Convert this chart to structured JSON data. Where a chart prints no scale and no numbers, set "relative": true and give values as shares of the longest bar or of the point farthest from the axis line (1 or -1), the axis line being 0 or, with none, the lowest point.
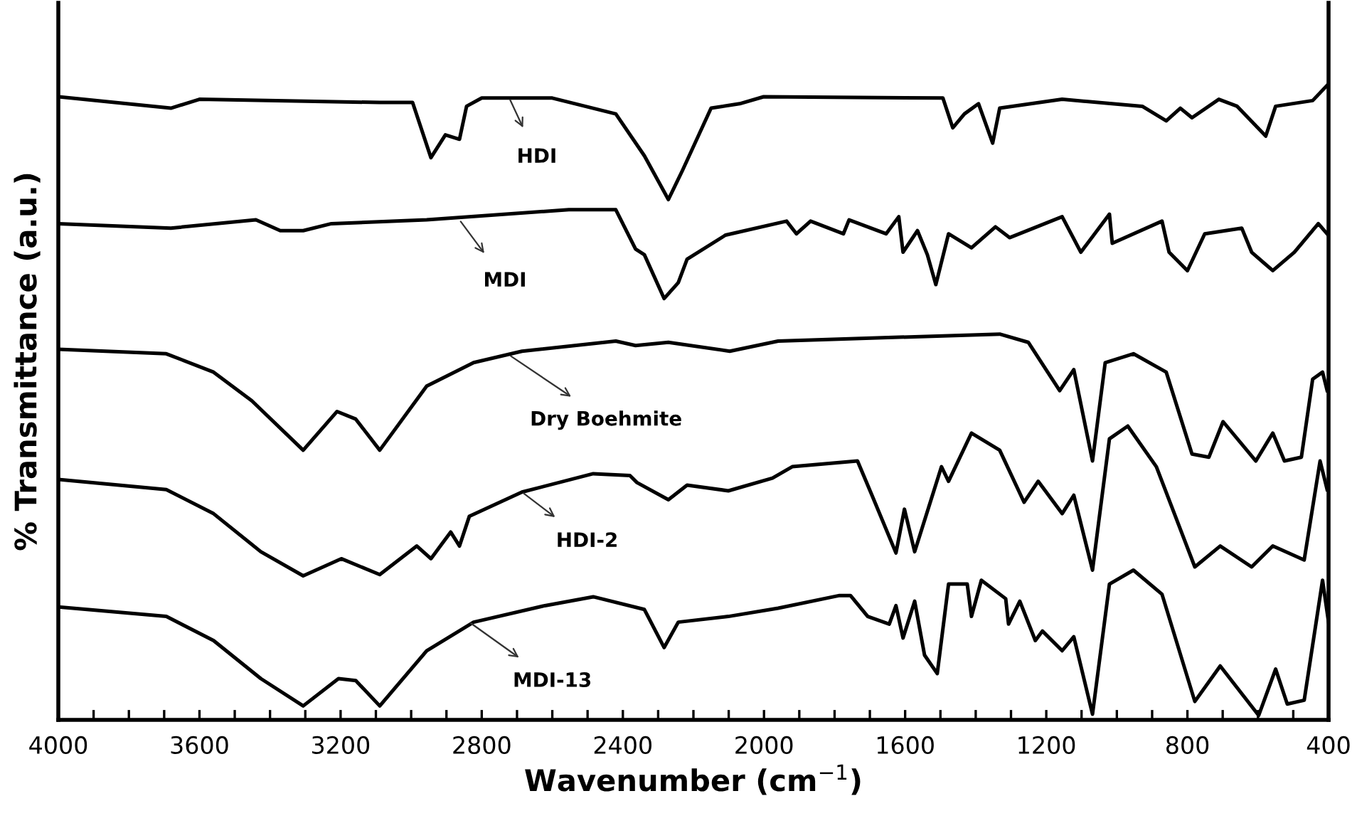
{
  "chart_data": {
    "type": "line",
    "relative": true,
    "xlabel": "Wavenumber (cm$^{−1}$)",
    "ylabel": "% Transmittance (a.u.)",
    "xlim": [
      4000,
      400
    ],
    "xticks": [
      4000,
      {
        "value": 3900,
        "label": null
      },
      {
        "value": 3800,
        "label": null
      },
      {
        "value": 3700,
        "label": null
      },
      3600,
      {
        "value": 3500,
        "label": null
      },
      {
        "value": 3400,
        "label": null
      },
      {
        "value": 3300,
        "label": null
      },
      3200,
      {
        "value": 3100,
        "label": null
      },
      {
        "value": 3000,
        "label": null
      },
      {
        "value": 2900,
        "label": null
      },
      2800,
      {
        "value": 2700,
        "label": null
      },
      {
        "value": 2600,
        "label": null
      },
      {
        "value": 2500,
        "label": null
      },
      2400,
      {
        "value": 2300,
        "label": null
      },
      {
        "value": 2200,
        "label": null
      },
      {
        "value": 2100,
        "label": null
      },
      2000,
      {
        "value": 1900,
        "label": null
      },
      {
        "value": 1800,
        "label": null
      },
      {
        "value": 1700,
        "label": null
      },
      1600,
      {
        "value": 1500,
        "label": null
      },
      {
        "value": 1400,
        "label": null
      },
      {
        "value": 1300,
        "label": null
      },
      1200,
      {
        "value": 1100,
        "label": null
      },
      {
        "value": 1000,
        "label": null
      },
      {
        "value": 900,
        "label": null
      },
      800,
      {
        "value": 700,
        "label": null
      },
      {
        "value": 600,
        "label": null
      },
      {
        "value": 500,
        "label": null
      },
      400
    ],
    "grid": false,
    "legend": false,
    "marker": "none",
    "line_style": "solid",
    "series": [
      {
        "color": "#000000",
        "x": [
          4000,
          3681,
          3600,
          3089,
          2996,
          2944,
          2903,
          2863,
          2843,
          2800,
          2600,
          2420,
          2339,
          2271,
          2231,
          2150,
          2069,
          2001,
          1493,
          1465,
          1432,
          1392,
          1352,
          1332,
          1155,
          928,
          860,
          820,
          787,
          711,
          659,
          578,
          550,
          445,
          404
        ],
        "values": [
          0.982,
          0.964,
          0.978,
          0.973,
          0.973,
          0.886,
          0.922,
          0.915,
          0.967,
          0.98,
          0.98,
          0.955,
          0.889,
          0.82,
          0.866,
          0.964,
          0.971,
          0.982,
          0.98,
          0.933,
          0.955,
          0.971,
          0.909,
          0.964,
          0.978,
          0.967,
          0.944,
          0.964,
          0.949,
          0.978,
          0.967,
          0.92,
          0.967,
          0.976,
          1.0
        ]
      },
      {
        "color": "#000000",
        "x": [
          4000,
          3681,
          3440,
          3371,
          3306,
          3226,
          2956,
          2553,
          2420,
          2364,
          2339,
          2283,
          2243,
          2218,
          2109,
          1936,
          1908,
          1868,
          1775,
          1759,
          1654,
          1618,
          1606,
          1565,
          1537,
          1513,
          1477,
          1412,
          1344,
          1304,
          1155,
          1102,
          1021,
          1013,
          872,
          852,
          800,
          751,
          646,
          618,
          558,
          497,
          429,
          404
        ],
        "values": [
          0.782,
          0.775,
          0.788,
          0.771,
          0.771,
          0.782,
          0.788,
          0.804,
          0.804,
          0.742,
          0.733,
          0.664,
          0.689,
          0.726,
          0.764,
          0.786,
          0.766,
          0.786,
          0.766,
          0.788,
          0.766,
          0.793,
          0.737,
          0.771,
          0.733,
          0.686,
          0.766,
          0.744,
          0.777,
          0.76,
          0.793,
          0.737,
          0.797,
          0.751,
          0.786,
          0.737,
          0.708,
          0.766,
          0.775,
          0.737,
          0.708,
          0.737,
          0.782,
          0.766
        ]
      },
      {
        "color": "#000000",
        "x": [
          4000,
          3694,
          3560,
          3452,
          3306,
          3210,
          3157,
          3089,
          2956,
          2823,
          2686,
          2420,
          2364,
          2271,
          2097,
          1960,
          1332,
          1251,
          1162,
          1122,
          1069,
          1033,
          953,
          860,
          787,
          739,
          699,
          606,
          558,
          525,
          477,
          445,
          417,
          404
        ],
        "values": [
          0.584,
          0.577,
          0.548,
          0.503,
          0.425,
          0.486,
          0.474,
          0.425,
          0.526,
          0.563,
          0.581,
          0.597,
          0.59,
          0.595,
          0.581,
          0.597,
          0.608,
          0.595,
          0.519,
          0.552,
          0.408,
          0.563,
          0.577,
          0.548,
          0.419,
          0.414,
          0.47,
          0.408,
          0.452,
          0.408,
          0.414,
          0.537,
          0.548,
          0.519
        ]
      },
      {
        "color": "#000000",
        "x": [
          4000,
          3694,
          3560,
          3426,
          3306,
          3198,
          3089,
          2984,
          2944,
          2888,
          2863,
          2835,
          2686,
          2484,
          2380,
          2360,
          2271,
          2218,
          2101,
          1976,
          1920,
          1735,
          1694,
          1626,
          1602,
          1573,
          1497,
          1477,
          1412,
          1332,
          1263,
          1223,
          1155,
          1122,
          1069,
          1021,
          969,
          888,
          779,
          707,
          618,
          558,
          469,
          424,
          404
        ],
        "values": [
          0.379,
          0.363,
          0.325,
          0.265,
          0.227,
          0.254,
          0.229,
          0.274,
          0.254,
          0.296,
          0.274,
          0.321,
          0.359,
          0.388,
          0.385,
          0.374,
          0.347,
          0.37,
          0.361,
          0.381,
          0.399,
          0.408,
          0.354,
          0.263,
          0.332,
          0.265,
          0.399,
          0.376,
          0.452,
          0.425,
          0.343,
          0.376,
          0.325,
          0.354,
          0.236,
          0.443,
          0.463,
          0.399,
          0.241,
          0.274,
          0.241,
          0.274,
          0.252,
          0.408,
          0.363
        ]
      },
      {
        "color": "#000000",
        "x": [
          4000,
          3694,
          3560,
          3426,
          3306,
          3206,
          3157,
          3089,
          2956,
          2823,
          2621,
          2484,
          2339,
          2283,
          2243,
          2101,
          1960,
          1786,
          1755,
          1706,
          1645,
          1626,
          1606,
          1573,
          1545,
          1509,
          1477,
          1424,
          1412,
          1384,
          1315,
          1307,
          1275,
          1231,
          1211,
          1155,
          1122,
          1069,
          1021,
          953,
          872,
          779,
          707,
          598,
          550,
          517,
          469,
          417,
          400
        ],
        "values": [
          0.178,
          0.163,
          0.125,
          0.065,
          0.022,
          0.065,
          0.062,
          0.022,
          0.109,
          0.154,
          0.18,
          0.194,
          0.174,
          0.114,
          0.154,
          0.163,
          0.176,
          0.196,
          0.196,
          0.163,
          0.151,
          0.18,
          0.129,
          0.187,
          0.102,
          0.073,
          0.214,
          0.214,
          0.163,
          0.22,
          0.191,
          0.151,
          0.187,
          0.125,
          0.14,
          0.109,
          0.131,
          0.009,
          0.214,
          0.236,
          0.198,
          0.029,
          0.085,
          0.007,
          0.08,
          0.025,
          0.031,
          0.22,
          0.154
        ]
      }
    ],
    "annotations": [
      {
        "text": "HDI",
        "x": 2722,
        "y": 0.98
      },
      {
        "text": "MDI",
        "x": 2863,
        "y": 0.788
      },
      {
        "text": "Dry Boehmite",
        "x": 2722,
        "y": 0.575
      },
      {
        "text": "HDI-2",
        "x": 2686,
        "y": 0.359
      },
      {
        "text": "MDI-13",
        "x": 2835,
        "y": 0.154
      }
    ]
  }
}
